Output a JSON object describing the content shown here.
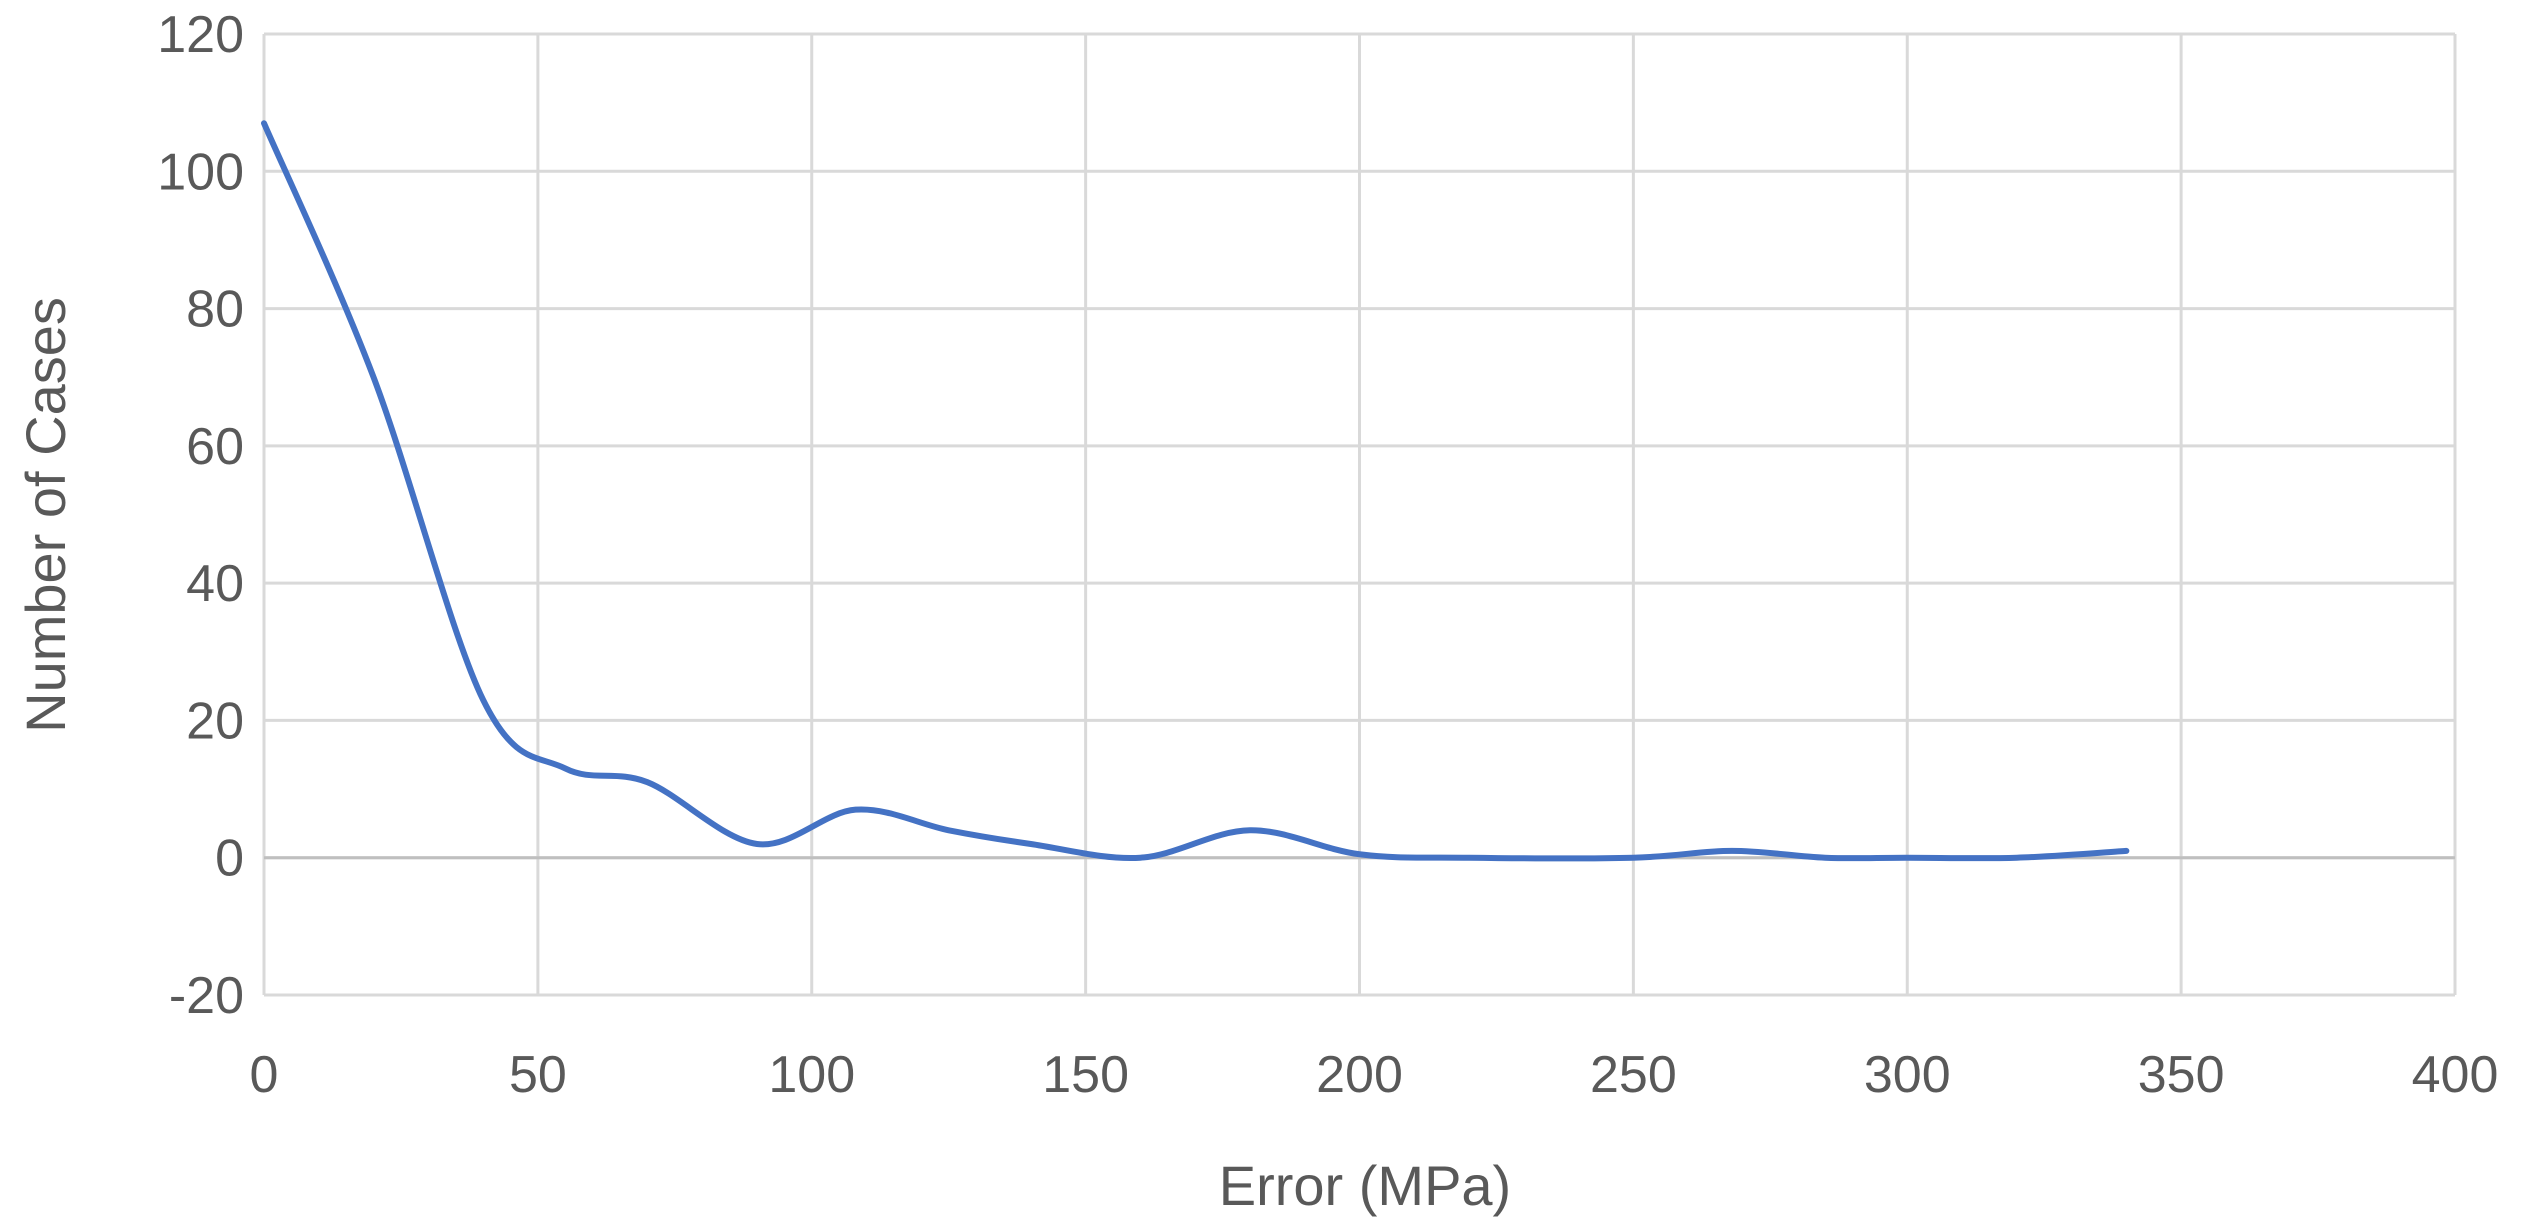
{
  "chart_data": {
    "type": "line",
    "xlabel": "Error (MPa)",
    "ylabel": "Number of Cases",
    "xlim": [
      0,
      400
    ],
    "ylim": [
      -20,
      120
    ],
    "xticks": [
      0,
      50,
      100,
      150,
      200,
      250,
      300,
      350,
      400
    ],
    "yticks": [
      -20,
      0,
      20,
      40,
      60,
      80,
      100,
      120
    ],
    "grid": true,
    "smooth": true,
    "series": [
      {
        "color": "#4472c4",
        "x": [
          0,
          20,
          40,
          55,
          70,
          90,
          108,
          125,
          140,
          160,
          180,
          200,
          220,
          250,
          268,
          285,
          300,
          320,
          340
        ],
        "y": [
          107,
          70,
          23,
          13,
          11,
          2,
          7,
          4,
          2,
          0,
          4,
          0.5,
          0,
          0,
          1,
          0,
          0,
          0,
          1
        ]
      }
    ]
  }
}
